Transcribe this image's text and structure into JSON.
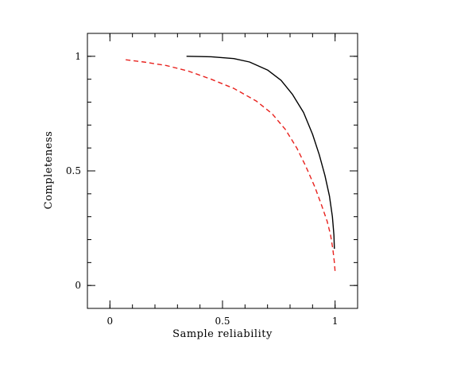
{
  "chart_data": {
    "type": "line",
    "title": "",
    "xlabel": "Sample reliability",
    "ylabel": "Completeness",
    "xlim": [
      -0.1,
      1.1
    ],
    "ylim": [
      -0.1,
      1.1
    ],
    "x_ticks": [
      0,
      0.5,
      1
    ],
    "x_tick_labels": [
      "0",
      "0.5",
      "1"
    ],
    "y_ticks": [
      0,
      0.5,
      1
    ],
    "y_tick_labels": [
      "0",
      "0.5",
      "1"
    ],
    "x_minor_step": 0.1,
    "y_minor_step": 0.1,
    "grid": false,
    "legend": "none",
    "series": [
      {
        "style": "solid",
        "color": "#000000",
        "points": [
          [
            0.34,
            1.0
          ],
          [
            0.45,
            0.998
          ],
          [
            0.55,
            0.99
          ],
          [
            0.62,
            0.975
          ],
          [
            0.7,
            0.94
          ],
          [
            0.76,
            0.895
          ],
          [
            0.81,
            0.835
          ],
          [
            0.86,
            0.755
          ],
          [
            0.9,
            0.66
          ],
          [
            0.93,
            0.57
          ],
          [
            0.955,
            0.48
          ],
          [
            0.975,
            0.39
          ],
          [
            0.988,
            0.3
          ],
          [
            0.995,
            0.22
          ],
          [
            0.997,
            0.16
          ]
        ]
      },
      {
        "style": "dashed",
        "color": "#e8211d",
        "points": [
          [
            0.07,
            0.985
          ],
          [
            0.15,
            0.975
          ],
          [
            0.25,
            0.96
          ],
          [
            0.35,
            0.935
          ],
          [
            0.45,
            0.9
          ],
          [
            0.55,
            0.86
          ],
          [
            0.65,
            0.805
          ],
          [
            0.72,
            0.75
          ],
          [
            0.78,
            0.68
          ],
          [
            0.83,
            0.6
          ],
          [
            0.87,
            0.52
          ],
          [
            0.91,
            0.43
          ],
          [
            0.94,
            0.35
          ],
          [
            0.965,
            0.28
          ],
          [
            0.98,
            0.22
          ],
          [
            0.99,
            0.16
          ],
          [
            0.997,
            0.1
          ],
          [
            1.0,
            0.06
          ]
        ]
      }
    ]
  }
}
